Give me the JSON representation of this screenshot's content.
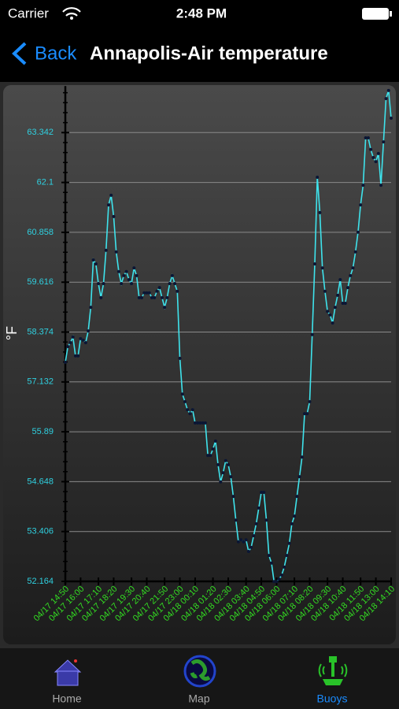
{
  "status_bar": {
    "carrier": "Carrier",
    "time": "2:48 PM"
  },
  "nav_bar": {
    "back": "Back",
    "title": "Annapolis-Air temperature"
  },
  "chart_data": {
    "type": "line",
    "y_label": "°F",
    "categories": [
      "04/17 14:50",
      null,
      null,
      null,
      null,
      null,
      "04/17 16:00",
      null,
      null,
      null,
      null,
      null,
      null,
      "04/17 17:10",
      null,
      null,
      null,
      null,
      null,
      "04/17 18:20",
      null,
      null,
      null,
      null,
      null,
      null,
      "04/17 19:30",
      null,
      null,
      null,
      null,
      null,
      "04/17 20:40",
      null,
      null,
      null,
      null,
      null,
      null,
      "04/17 21:50",
      null,
      null,
      null,
      null,
      null,
      "04/17 23:00",
      null,
      null,
      null,
      null,
      null,
      "04/18 00:10",
      null,
      null,
      null,
      null,
      null,
      null,
      "04/18 01:20",
      null,
      null,
      null,
      null,
      null,
      "04/18 02:30",
      null,
      null,
      null,
      null,
      null,
      null,
      "04/18 03:40",
      null,
      null,
      null,
      null,
      null,
      "04/18 04:50",
      null,
      null,
      null,
      null,
      null,
      "04/18 06:00",
      null,
      null,
      null,
      null,
      null,
      null,
      "04/18 07:10",
      null,
      null,
      null,
      null,
      null,
      "04/18 08:20",
      null,
      null,
      null,
      null,
      null,
      null,
      "04/18 09:30",
      null,
      null,
      null,
      null,
      null,
      "04/18 10:40",
      null,
      null,
      null,
      null,
      null,
      null,
      "04/18 11:50",
      null,
      null,
      null,
      null,
      null,
      "04/18 13:00",
      null,
      null,
      null,
      null,
      null,
      "04/18 14:10"
    ],
    "values": [
      57.62,
      58.01,
      58.11,
      58.25,
      57.78,
      57.78,
      58.21,
      58.17,
      58.11,
      58.4,
      58.99,
      60.17,
      60.07,
      59.58,
      59.23,
      59.58,
      60.41,
      61.54,
      61.78,
      61.25,
      60.37,
      59.88,
      59.58,
      59.78,
      59.88,
      59.68,
      59.58,
      59.97,
      59.78,
      59.23,
      59.23,
      59.35,
      59.35,
      59.35,
      59.23,
      59.23,
      59.39,
      59.48,
      59.23,
      58.99,
      59.23,
      59.58,
      59.78,
      59.58,
      59.39,
      57.72,
      56.83,
      56.64,
      56.44,
      56.34,
      56.44,
      56.11,
      56.11,
      56.11,
      56.11,
      56.11,
      55.3,
      55.3,
      55.46,
      55.66,
      55.07,
      54.64,
      54.87,
      55.17,
      55.07,
      54.77,
      54.28,
      53.69,
      53.15,
      53.2,
      53.15,
      53.2,
      52.91,
      53.01,
      53.3,
      53.6,
      53.99,
      54.38,
      54.38,
      53.69,
      52.81,
      52.62,
      52.16,
      52.16,
      52.22,
      52.32,
      52.52,
      52.81,
      53.11,
      53.6,
      53.79,
      54.28,
      54.77,
      55.26,
      56.34,
      56.34,
      56.64,
      58.31,
      60.07,
      62.23,
      61.35,
      59.97,
      59.39,
      58.89,
      58.8,
      58.6,
      58.99,
      59.29,
      59.68,
      59.09,
      59.09,
      59.48,
      59.78,
      59.97,
      60.37,
      60.86,
      61.54,
      62.03,
      63.21,
      63.21,
      62.92,
      62.72,
      62.62,
      62.82,
      62.03,
      63.11,
      64.19,
      64.39,
      63.7
    ],
    "color": "#3ee3ec",
    "marker_color": "#0b1634",
    "ylim": [
      52.164,
      64.5
    ],
    "yticks": [
      52.164,
      53.406,
      54.648,
      55.89,
      57.132,
      58.374,
      59.616,
      60.858,
      62.1,
      63.342
    ],
    "grid": true
  },
  "tab_bar": {
    "items": [
      {
        "label": "Home"
      },
      {
        "label": "Map"
      },
      {
        "label": "Buoys"
      }
    ],
    "selected": 2
  }
}
